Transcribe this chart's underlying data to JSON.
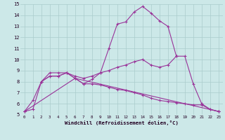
{
  "bg_color": "#cce8e8",
  "line_color": "#993399",
  "grid_color": "#aacccc",
  "xlabel": "Windchill (Refroidissement éolien,°C)",
  "xlim": [
    -0.5,
    23.5
  ],
  "ylim": [
    5,
    15
  ],
  "series": [
    {
      "x": [
        0,
        1,
        2,
        3,
        4,
        5,
        6,
        7,
        8,
        9,
        10,
        11,
        12,
        13,
        14,
        15,
        16,
        17,
        18
      ],
      "y": [
        5.3,
        6.3,
        8.0,
        8.8,
        8.8,
        8.8,
        8.3,
        7.8,
        8.2,
        8.8,
        11.0,
        13.2,
        13.4,
        14.3,
        14.8,
        14.2,
        13.5,
        13.0,
        10.3
      ]
    },
    {
      "x": [
        0,
        1,
        2,
        3,
        4,
        5,
        6,
        7,
        8,
        9,
        10,
        11,
        12,
        13,
        14,
        15,
        16,
        17,
        18,
        19,
        20,
        21,
        22,
        23
      ],
      "y": [
        5.3,
        5.5,
        8.0,
        8.5,
        8.5,
        8.8,
        8.5,
        8.3,
        8.5,
        8.8,
        9.0,
        9.3,
        9.5,
        9.8,
        10.0,
        9.5,
        9.3,
        9.5,
        10.3,
        10.3,
        7.8,
        6.0,
        5.5,
        5.3
      ]
    },
    {
      "x": [
        0,
        6,
        23
      ],
      "y": [
        5.3,
        8.3,
        5.3
      ]
    },
    {
      "x": [
        2,
        3,
        4,
        5,
        6,
        7,
        8,
        9,
        10,
        11,
        12,
        13,
        14,
        15,
        16,
        17,
        18,
        19,
        20,
        21,
        22,
        23
      ],
      "y": [
        8.0,
        8.5,
        8.5,
        8.8,
        8.3,
        7.8,
        7.8,
        7.7,
        7.5,
        7.3,
        7.2,
        7.0,
        6.8,
        6.5,
        6.3,
        6.2,
        6.1,
        6.0,
        5.9,
        5.9,
        5.5,
        5.3
      ]
    }
  ]
}
